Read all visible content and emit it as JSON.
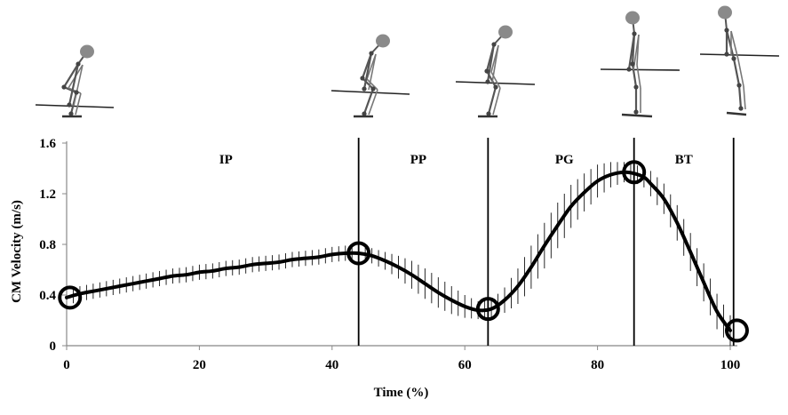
{
  "chart_data": {
    "type": "line",
    "title": "",
    "xlabel": "Time (%)",
    "ylabel": "CM Velocity (m/s)",
    "xlim": [
      0,
      100
    ],
    "ylim": [
      0,
      1.6
    ],
    "xticks": [
      0,
      20,
      40,
      60,
      80,
      100
    ],
    "yticks": [
      0,
      0.4,
      0.8,
      1.2,
      1.6
    ],
    "ytick_labels": [
      "0",
      "0.4",
      "0.8",
      "1.2",
      "1.6"
    ],
    "grid": false,
    "series": [
      {
        "name": "CM Velocity",
        "x": [
          0,
          2,
          5,
          8,
          10,
          12,
          14,
          16,
          18,
          20,
          22,
          24,
          26,
          28,
          30,
          32,
          34,
          36,
          38,
          40,
          42,
          44,
          46,
          48,
          50,
          52,
          54,
          56,
          58,
          60,
          62,
          64,
          66,
          68,
          70,
          72,
          74,
          76,
          78,
          80,
          82,
          84,
          85.5,
          87,
          88,
          90,
          92,
          94,
          96,
          98,
          100
        ],
        "y": [
          0.38,
          0.41,
          0.44,
          0.47,
          0.49,
          0.51,
          0.53,
          0.55,
          0.56,
          0.58,
          0.59,
          0.61,
          0.62,
          0.64,
          0.65,
          0.66,
          0.68,
          0.69,
          0.7,
          0.72,
          0.73,
          0.73,
          0.71,
          0.67,
          0.62,
          0.56,
          0.49,
          0.42,
          0.36,
          0.31,
          0.28,
          0.29,
          0.36,
          0.47,
          0.62,
          0.79,
          0.95,
          1.1,
          1.21,
          1.3,
          1.35,
          1.37,
          1.36,
          1.33,
          1.28,
          1.16,
          0.97,
          0.74,
          0.5,
          0.27,
          0.12
        ],
        "sd": [
          0.06,
          0.06,
          0.06,
          0.06,
          0.06,
          0.06,
          0.06,
          0.06,
          0.06,
          0.06,
          0.06,
          0.06,
          0.06,
          0.06,
          0.06,
          0.06,
          0.06,
          0.06,
          0.06,
          0.06,
          0.06,
          0.06,
          0.06,
          0.07,
          0.09,
          0.11,
          0.12,
          0.12,
          0.11,
          0.09,
          0.07,
          0.07,
          0.1,
          0.14,
          0.17,
          0.18,
          0.18,
          0.17,
          0.15,
          0.13,
          0.1,
          0.08,
          0.07,
          0.08,
          0.1,
          0.12,
          0.14,
          0.15,
          0.15,
          0.14,
          0.12
        ]
      }
    ],
    "phase_boundaries": [
      44,
      63.5,
      85.5,
      100.5
    ],
    "phases": [
      {
        "label": "IP",
        "x_center": 24
      },
      {
        "label": "PP",
        "x_center": 53
      },
      {
        "label": "PG",
        "x_center": 75
      },
      {
        "label": "BT",
        "x_center": 93
      }
    ],
    "event_markers": [
      {
        "x": 0.5,
        "y": 0.38
      },
      {
        "x": 44,
        "y": 0.73
      },
      {
        "x": 63.5,
        "y": 0.29
      },
      {
        "x": 85.5,
        "y": 1.37
      },
      {
        "x": 101,
        "y": 0.12
      }
    ],
    "figure_frames": [
      {
        "name": "stick-figure-start",
        "x_center": 10.5
      },
      {
        "name": "stick-figure-first-pull",
        "x_center": 45
      },
      {
        "name": "stick-figure-second-pull",
        "x_center": 63
      },
      {
        "name": "stick-figure-power-position",
        "x_center": 83
      },
      {
        "name": "stick-figure-bar-top",
        "x_center": 97
      }
    ]
  }
}
